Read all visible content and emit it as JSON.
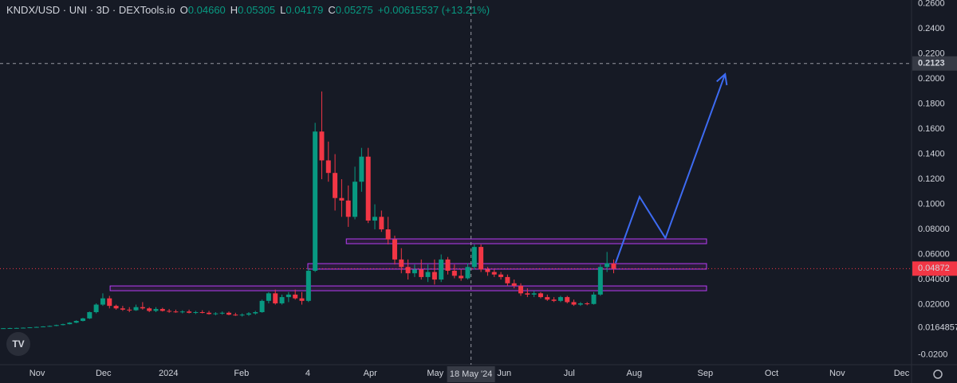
{
  "chart_data": {
    "type": "candlestick",
    "title": "KNDX/USD · UNI · 3D · DEXTools.io",
    "ohlc_legend": [
      {
        "key": "O",
        "text": "0.04660"
      },
      {
        "key": "H",
        "text": "0.05305"
      },
      {
        "key": "L",
        "text": "0.04179"
      },
      {
        "key": "C",
        "text": "0.05275"
      }
    ],
    "change_text": "+0.00615537 (+13.21%)",
    "up_color": "#089981",
    "down_color": "#f23645",
    "xlim": [
      -0.5,
      136.9
    ],
    "ylim": [
      -0.0279,
      0.2629
    ],
    "grid": false,
    "yticks": [
      {
        "value": 0.26,
        "label": "0.2600"
      },
      {
        "value": 0.24,
        "label": "0.2400"
      },
      {
        "value": 0.22,
        "label": "0.2200"
      },
      {
        "value": 0.2,
        "label": "0.2000"
      },
      {
        "value": 0.18,
        "label": "0.1800"
      },
      {
        "value": 0.16,
        "label": "0.1600"
      },
      {
        "value": 0.14,
        "label": "0.1400"
      },
      {
        "value": 0.12,
        "label": "0.1200"
      },
      {
        "value": 0.1,
        "label": "0.1000"
      },
      {
        "value": 0.08,
        "label": "0.08000"
      },
      {
        "value": 0.06,
        "label": "0.06000"
      },
      {
        "value": 0.04,
        "label": "0.04000"
      },
      {
        "value": 0.02,
        "label": "0.02000"
      },
      {
        "value": -0.02,
        "label": "-0.0200"
      }
    ],
    "scale_note": {
      "value": 0.0015,
      "label": "0.0164857"
    },
    "xticks": [
      {
        "value": 5.1,
        "label": "Nov"
      },
      {
        "value": 15.1,
        "label": "Dec"
      },
      {
        "value": 24.9,
        "label": "2024"
      },
      {
        "value": 35.9,
        "label": "Feb"
      },
      {
        "value": 45.9,
        "label": "4"
      },
      {
        "value": 55.3,
        "label": "Apr"
      },
      {
        "value": 65.1,
        "label": "May"
      },
      {
        "value": 75.5,
        "label": "Jun"
      },
      {
        "value": 85.3,
        "label": "Jul"
      },
      {
        "value": 95.1,
        "label": "Aug"
      },
      {
        "value": 105.8,
        "label": "Sep"
      },
      {
        "value": 115.8,
        "label": "Oct"
      },
      {
        "value": 125.7,
        "label": "Nov"
      },
      {
        "value": 135.4,
        "label": "Dec"
      }
    ],
    "candles": [
      [
        0.001,
        0.0013,
        0.0009,
        0.0012
      ],
      [
        0.0012,
        0.0015,
        0.0011,
        0.0013
      ],
      [
        0.0013,
        0.0016,
        0.0012,
        0.0014
      ],
      [
        0.0014,
        0.0018,
        0.0013,
        0.0016
      ],
      [
        0.0016,
        0.002,
        0.0015,
        0.0019
      ],
      [
        0.0019,
        0.0024,
        0.0018,
        0.0022
      ],
      [
        0.0022,
        0.0028,
        0.0021,
        0.0026
      ],
      [
        0.0026,
        0.0033,
        0.0024,
        0.003
      ],
      [
        0.003,
        0.004,
        0.0028,
        0.0037
      ],
      [
        0.0037,
        0.0048,
        0.0034,
        0.0044
      ],
      [
        0.0044,
        0.006,
        0.0042,
        0.0056
      ],
      [
        0.0056,
        0.0075,
        0.0052,
        0.007
      ],
      [
        0.007,
        0.0095,
        0.0066,
        0.009
      ],
      [
        0.009,
        0.0145,
        0.0085,
        0.014
      ],
      [
        0.014,
        0.021,
        0.013,
        0.02
      ],
      [
        0.02,
        0.029,
        0.019,
        0.025
      ],
      [
        0.025,
        0.027,
        0.017,
        0.019
      ],
      [
        0.019,
        0.02,
        0.016,
        0.017
      ],
      [
        0.017,
        0.019,
        0.015,
        0.016
      ],
      [
        0.016,
        0.018,
        0.014,
        0.0155
      ],
      [
        0.0155,
        0.02,
        0.015,
        0.018
      ],
      [
        0.018,
        0.022,
        0.016,
        0.017
      ],
      [
        0.017,
        0.018,
        0.014,
        0.015
      ],
      [
        0.015,
        0.018,
        0.014,
        0.0165
      ],
      [
        0.0165,
        0.0175,
        0.0145,
        0.015
      ],
      [
        0.015,
        0.0165,
        0.0135,
        0.0145
      ],
      [
        0.0145,
        0.016,
        0.0135,
        0.014
      ],
      [
        0.014,
        0.0155,
        0.013,
        0.0145
      ],
      [
        0.0145,
        0.016,
        0.013,
        0.0135
      ],
      [
        0.0135,
        0.015,
        0.0125,
        0.014
      ],
      [
        0.014,
        0.0155,
        0.013,
        0.0135
      ],
      [
        0.0135,
        0.015,
        0.012,
        0.0125
      ],
      [
        0.0125,
        0.014,
        0.0115,
        0.013
      ],
      [
        0.013,
        0.0145,
        0.012,
        0.0135
      ],
      [
        0.0135,
        0.0145,
        0.0115,
        0.012
      ],
      [
        0.012,
        0.0135,
        0.011,
        0.0115
      ],
      [
        0.0115,
        0.013,
        0.0105,
        0.012
      ],
      [
        0.012,
        0.014,
        0.011,
        0.013
      ],
      [
        0.013,
        0.015,
        0.012,
        0.014
      ],
      [
        0.014,
        0.024,
        0.0135,
        0.023
      ],
      [
        0.023,
        0.03,
        0.021,
        0.029
      ],
      [
        0.029,
        0.032,
        0.02,
        0.021
      ],
      [
        0.021,
        0.028,
        0.02,
        0.026
      ],
      [
        0.026,
        0.03,
        0.022,
        0.028
      ],
      [
        0.028,
        0.032,
        0.024,
        0.025
      ],
      [
        0.025,
        0.03,
        0.02,
        0.023
      ],
      [
        0.023,
        0.049,
        0.022,
        0.047
      ],
      [
        0.047,
        0.165,
        0.046,
        0.158
      ],
      [
        0.158,
        0.19,
        0.12,
        0.135
      ],
      [
        0.135,
        0.15,
        0.118,
        0.125
      ],
      [
        0.125,
        0.14,
        0.095,
        0.105
      ],
      [
        0.105,
        0.12,
        0.09,
        0.103
      ],
      [
        0.103,
        0.115,
        0.082,
        0.09
      ],
      [
        0.09,
        0.13,
        0.088,
        0.118
      ],
      [
        0.118,
        0.145,
        0.11,
        0.138
      ],
      [
        0.138,
        0.145,
        0.085,
        0.087
      ],
      [
        0.087,
        0.1,
        0.08,
        0.09
      ],
      [
        0.09,
        0.095,
        0.078,
        0.08
      ],
      [
        0.08,
        0.09,
        0.068,
        0.072
      ],
      [
        0.072,
        0.075,
        0.052,
        0.056
      ],
      [
        0.056,
        0.065,
        0.045,
        0.05
      ],
      [
        0.05,
        0.056,
        0.04,
        0.045
      ],
      [
        0.045,
        0.052,
        0.042,
        0.048
      ],
      [
        0.048,
        0.056,
        0.04,
        0.042
      ],
      [
        0.042,
        0.052,
        0.038,
        0.046
      ],
      [
        0.046,
        0.056,
        0.036,
        0.04
      ],
      [
        0.04,
        0.06,
        0.038,
        0.056
      ],
      [
        0.056,
        0.058,
        0.044,
        0.047
      ],
      [
        0.047,
        0.052,
        0.041,
        0.043
      ],
      [
        0.043,
        0.048,
        0.039,
        0.041
      ],
      [
        0.041,
        0.053,
        0.04,
        0.05
      ],
      [
        0.05,
        0.068,
        0.048,
        0.066
      ],
      [
        0.066,
        0.068,
        0.046,
        0.048
      ],
      [
        0.048,
        0.05,
        0.043,
        0.046
      ],
      [
        0.046,
        0.048,
        0.042,
        0.044
      ],
      [
        0.044,
        0.046,
        0.04,
        0.042
      ],
      [
        0.042,
        0.044,
        0.035,
        0.037
      ],
      [
        0.037,
        0.04,
        0.033,
        0.035
      ],
      [
        0.035,
        0.037,
        0.027,
        0.029
      ],
      [
        0.029,
        0.033,
        0.026,
        0.028
      ],
      [
        0.028,
        0.031,
        0.026,
        0.029
      ],
      [
        0.029,
        0.03,
        0.025,
        0.026
      ],
      [
        0.026,
        0.028,
        0.023,
        0.024
      ],
      [
        0.024,
        0.026,
        0.022,
        0.023
      ],
      [
        0.023,
        0.027,
        0.022,
        0.026
      ],
      [
        0.026,
        0.027,
        0.021,
        0.022
      ],
      [
        0.022,
        0.024,
        0.019,
        0.02
      ],
      [
        0.02,
        0.022,
        0.019,
        0.021
      ],
      [
        0.021,
        0.022,
        0.0195,
        0.0205
      ],
      [
        0.0205,
        0.03,
        0.02,
        0.028
      ],
      [
        0.028,
        0.052,
        0.027,
        0.05
      ],
      [
        0.05,
        0.062,
        0.046,
        0.053
      ],
      [
        0.0527,
        0.056,
        0.045,
        0.04872
      ]
    ],
    "zones": [
      {
        "x": [
          51.7,
          106.0
        ],
        "top": 0.0724,
        "bottom": 0.0686
      },
      {
        "x": [
          45.9,
          106.0
        ],
        "top": 0.0527,
        "bottom": 0.0483
      },
      {
        "x": [
          16.1,
          106.0
        ],
        "top": 0.0349,
        "bottom": 0.0311
      }
    ],
    "projection": {
      "color": "#3d6bf2",
      "x": [
        92.3,
        95.9,
        99.8,
        108.8
      ],
      "y": [
        0.0533,
        0.106,
        0.073,
        0.2038
      ]
    },
    "crosshair": {
      "x": 70.5,
      "x_label": "18 May '24",
      "y": 0.2123
    },
    "last_price": 0.04872
  }
}
